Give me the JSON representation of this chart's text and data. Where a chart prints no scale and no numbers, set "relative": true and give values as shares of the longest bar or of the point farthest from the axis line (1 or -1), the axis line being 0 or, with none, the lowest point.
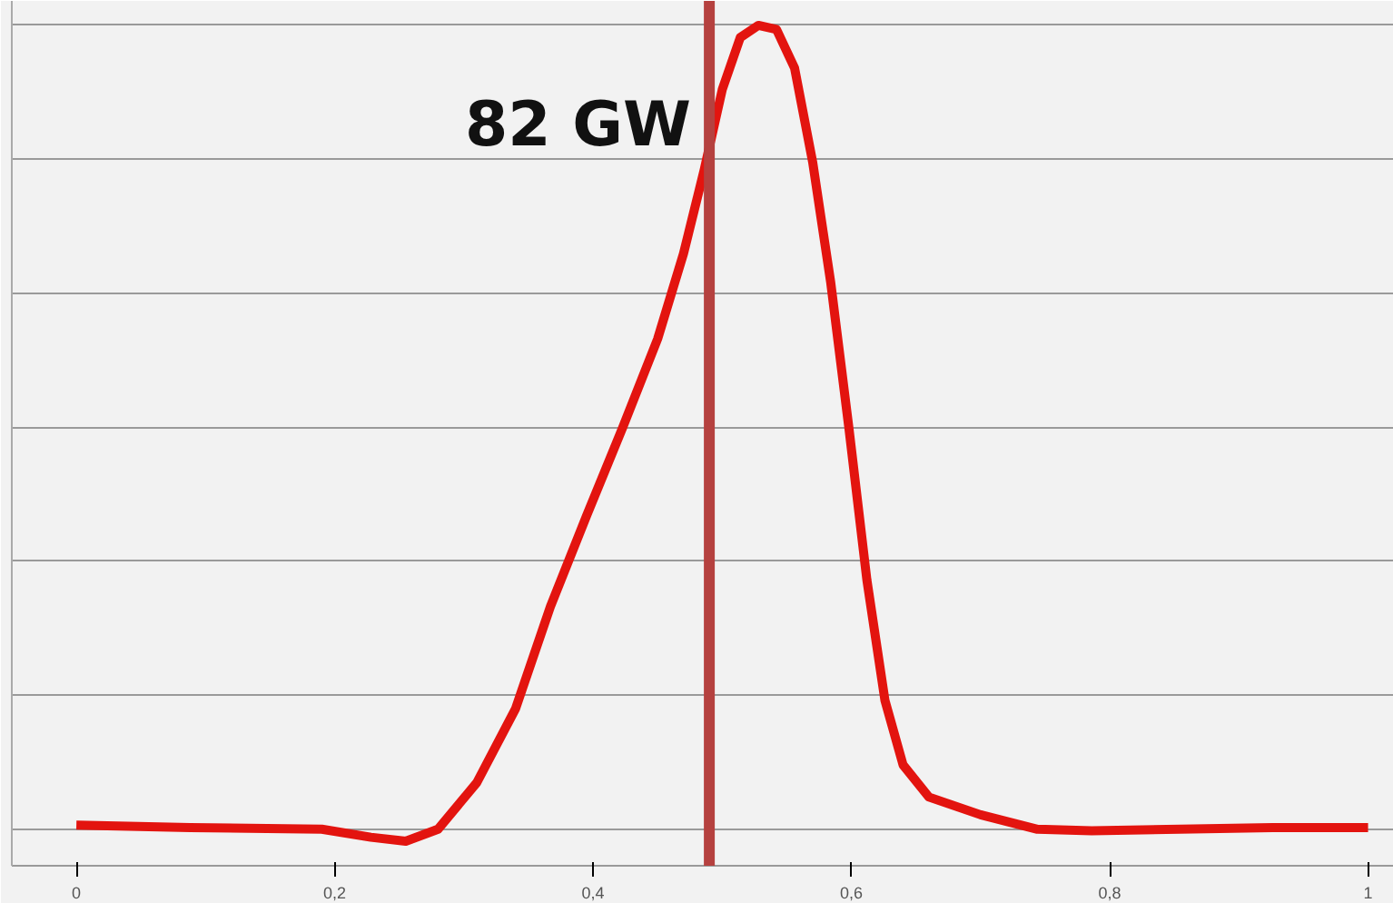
{
  "chart_data": {
    "type": "line",
    "relative": true,
    "grid": "y",
    "marker": "none",
    "line_style": "solid",
    "xlim": [
      -0.05,
      1.02
    ],
    "xticks": [
      0,
      {
        "value": 0.2,
        "label": "0,2"
      },
      {
        "value": 0.4,
        "label": "0,4"
      },
      {
        "value": 0.6,
        "label": "0,6"
      },
      {
        "value": 0.8,
        "label": "0,8"
      },
      1
    ],
    "series": [
      {
        "color": "#e3140f",
        "x": [
          0,
          0.088,
          0.19,
          0.228,
          0.255,
          0.28,
          0.31,
          0.34,
          0.367,
          0.395,
          0.423,
          0.45,
          0.47,
          0.486,
          0.5,
          0.514,
          0.528,
          0.542,
          0.556,
          0.57,
          0.584,
          0.598,
          0.612,
          0.626,
          0.64,
          0.66,
          0.7,
          0.744,
          0.786,
          0.926,
          1
        ],
        "values": [
          0.005,
          0.002,
          0,
          -0.01,
          -0.015,
          0,
          0.058,
          0.15,
          0.277,
          0.39,
          0.5,
          0.61,
          0.716,
          0.82,
          0.92,
          0.985,
          1,
          0.995,
          0.947,
          0.83,
          0.68,
          0.5,
          0.31,
          0.16,
          0.08,
          0.04,
          0.018,
          0,
          -0.002,
          0.002,
          0.002
        ]
      }
    ],
    "ref_lines": [
      {
        "axis": "x",
        "value": 0.49,
        "label": "82 GW",
        "color": "#b5413f"
      }
    ]
  }
}
